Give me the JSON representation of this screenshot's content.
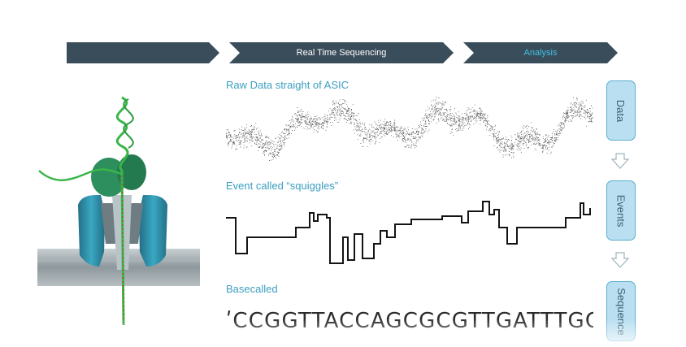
{
  "steps_bar": [
    {
      "label": ""
    },
    {
      "label": "Real Time Sequencing"
    },
    {
      "label": "Analysis"
    }
  ],
  "panels": {
    "raw": {
      "title": "Raw Data straight of ASIC"
    },
    "events": {
      "title": "Event called “squiggles”"
    },
    "basecalled": {
      "title": "Basecalled",
      "sequence": "ʹCCGGTTACCAGCGCGTTGATTTGCT"
    }
  },
  "pipeline": [
    {
      "label": "Data"
    },
    {
      "label": "Events"
    },
    {
      "label": "Sequence"
    }
  ],
  "colors": {
    "bar": "#3a4d5a",
    "bar_active_text": "#3fc2e4",
    "title_text": "#3c9fc0",
    "step_fill": "#b9dff1",
    "pore": "#2f8ea6",
    "membrane": "#9aa3a7",
    "motor": "#2e9a63",
    "strand": "#3ab54a"
  }
}
